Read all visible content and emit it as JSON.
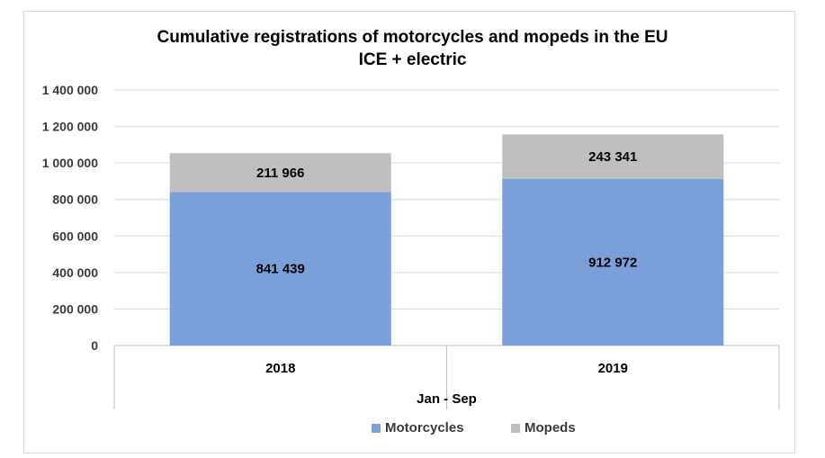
{
  "chart_data": {
    "type": "bar",
    "stacked": true,
    "title": "Cumulative registrations of motorcycles and mopeds in the EU",
    "subtitle": "ICE + electric",
    "xlabel": "Jan - Sep",
    "ylabel": "",
    "categories": [
      "2018",
      "2019"
    ],
    "series": [
      {
        "name": "Motorcycles",
        "values": [
          841439,
          912972
        ],
        "labels": [
          "841 439",
          "912 972"
        ],
        "color": "#7b9fd8"
      },
      {
        "name": "Mopeds",
        "values": [
          211966,
          243341
        ],
        "labels": [
          "211 966",
          "243 341"
        ],
        "color": "#bfbfbf"
      }
    ],
    "ylim": [
      0,
      1400000
    ],
    "yticks": [
      0,
      200000,
      400000,
      600000,
      800000,
      1000000,
      1200000,
      1400000
    ],
    "ytick_labels": [
      "0",
      "200 000",
      "400 000",
      "600 000",
      "800 000",
      "1 000 000",
      "1 200 000",
      "1 400 000"
    ],
    "grid": true,
    "legend": "bottom"
  }
}
